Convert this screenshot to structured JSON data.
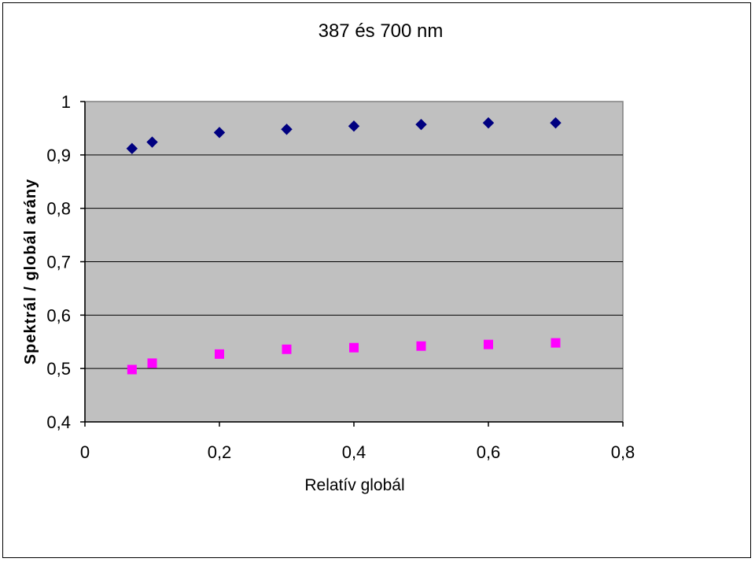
{
  "chart_data": {
    "type": "scatter",
    "title": "387 és 700 nm",
    "xlabel": "Relatív globál",
    "ylabel": "Spektrál / globál arány",
    "xlim": [
      0,
      0.8
    ],
    "ylim": [
      0.4,
      1
    ],
    "x_ticks": [
      "0",
      "0,2",
      "0,4",
      "0,6",
      "0,8"
    ],
    "y_ticks": [
      "0,4",
      "0,5",
      "0,6",
      "0,7",
      "0,8",
      "0,9",
      "1"
    ],
    "x_tick_values": [
      0,
      0.2,
      0.4,
      0.6,
      0.8
    ],
    "y_tick_values": [
      0.4,
      0.5,
      0.6,
      0.7,
      0.8,
      0.9,
      1.0
    ],
    "grid": true,
    "plot_background": "#c0c0c0",
    "series": [
      {
        "marker": "diamond",
        "color": "#000080",
        "x": [
          0.07,
          0.1,
          0.2,
          0.3,
          0.4,
          0.5,
          0.6,
          0.7
        ],
        "y": [
          0.912,
          0.924,
          0.942,
          0.948,
          0.954,
          0.957,
          0.96,
          0.96
        ]
      },
      {
        "marker": "square",
        "color": "#ff00ff",
        "x": [
          0.07,
          0.1,
          0.2,
          0.3,
          0.4,
          0.5,
          0.6,
          0.7
        ],
        "y": [
          0.498,
          0.51,
          0.527,
          0.536,
          0.539,
          0.542,
          0.545,
          0.548
        ]
      }
    ]
  }
}
